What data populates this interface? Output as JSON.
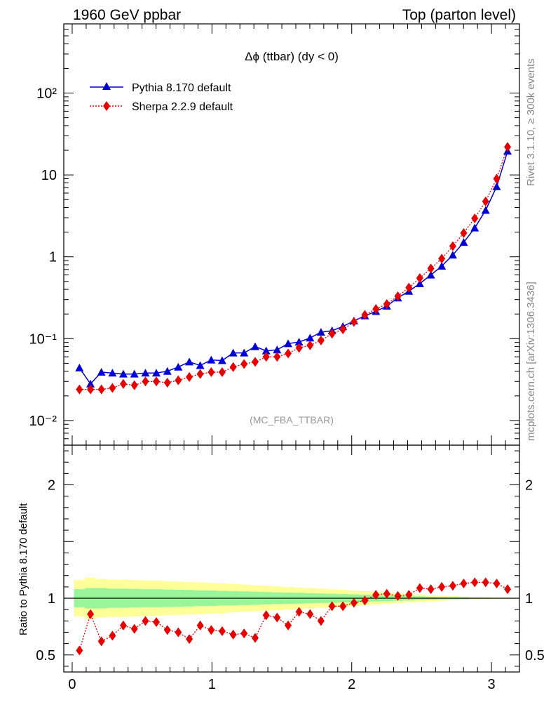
{
  "header": {
    "left_title": "1960 GeV ppbar",
    "right_title": "Top (parton level)"
  },
  "plot_title": "Δϕ (ttbar) (dy < 0)",
  "side_labels": {
    "rivet": "Rivet 3.1.10, ≥ 300k events",
    "mcplots": "mcplots.cern.ch [arXiv:1306.3436]"
  },
  "watermark": "(MC_FBA_TTBAR)",
  "ratio_ylabel": "Ratio to Pythia 8.170 default",
  "colors": {
    "pythia": "#0000d6",
    "sherpa": "#e60000",
    "band_inner": "#99f599",
    "band_outer": "#ffff99"
  },
  "chart_data": [
    {
      "type": "line",
      "panel": "main",
      "yscale": "log",
      "ylim": [
        0.005,
        700
      ],
      "xlim": [
        -0.06,
        3.2
      ],
      "yticks": [
        {
          "v": 0.01,
          "label": "10⁻²"
        },
        {
          "v": 0.1,
          "label": "10⁻¹"
        },
        {
          "v": 1,
          "label": "1"
        },
        {
          "v": 10,
          "label": "10"
        },
        {
          "v": 100,
          "label": "10²"
        }
      ],
      "legend_position": "top-left",
      "x": [
        0.052,
        0.131,
        0.209,
        0.288,
        0.366,
        0.445,
        0.524,
        0.602,
        0.681,
        0.759,
        0.838,
        0.916,
        0.995,
        1.073,
        1.152,
        1.23,
        1.309,
        1.388,
        1.466,
        1.545,
        1.623,
        1.702,
        1.78,
        1.859,
        1.937,
        2.016,
        2.094,
        2.173,
        2.251,
        2.33,
        2.409,
        2.487,
        2.566,
        2.644,
        2.723,
        2.801,
        2.88,
        2.958,
        3.037,
        3.115
      ],
      "series": [
        {
          "name": "Pythia 8.170 default",
          "marker": "triangle",
          "values": [
            0.044,
            0.028,
            0.039,
            0.038,
            0.037,
            0.037,
            0.038,
            0.038,
            0.04,
            0.045,
            0.052,
            0.047,
            0.055,
            0.054,
            0.067,
            0.067,
            0.08,
            0.071,
            0.073,
            0.087,
            0.091,
            0.102,
            0.12,
            0.125,
            0.141,
            0.165,
            0.19,
            0.215,
            0.25,
            0.315,
            0.38,
            0.47,
            0.6,
            0.77,
            1.05,
            1.5,
            2.25,
            3.7,
            7.2,
            19.5
          ]
        },
        {
          "name": "Sherpa 2.2.9 default",
          "marker": "diamond",
          "values": [
            0.024,
            0.024,
            0.024,
            0.025,
            0.028,
            0.027,
            0.03,
            0.03,
            0.029,
            0.031,
            0.034,
            0.037,
            0.039,
            0.039,
            0.045,
            0.049,
            0.052,
            0.06,
            0.06,
            0.066,
            0.077,
            0.083,
            0.095,
            0.115,
            0.13,
            0.16,
            0.195,
            0.23,
            0.265,
            0.33,
            0.42,
            0.55,
            0.72,
            0.95,
            1.35,
            1.95,
            2.95,
            4.75,
            9.0,
            22.0
          ]
        }
      ]
    },
    {
      "type": "line",
      "panel": "ratio",
      "ylim": [
        0.35,
        2.35
      ],
      "xlim": [
        -0.06,
        3.2
      ],
      "ylabel": "Ratio to Pythia 8.170 default",
      "yticks": [
        {
          "v": 0.5,
          "label": "0.5"
        },
        {
          "v": 1,
          "label": "1"
        },
        {
          "v": 2,
          "label": "2"
        }
      ],
      "xticks": [
        {
          "v": 0,
          "label": "0"
        },
        {
          "v": 1,
          "label": "1"
        },
        {
          "v": 2,
          "label": "2"
        },
        {
          "v": 3,
          "label": "3"
        }
      ],
      "reference_line": 1,
      "band_inner_halfwidth": [
        0.08,
        0.09,
        0.09,
        0.085,
        0.085,
        0.082,
        0.08,
        0.08,
        0.077,
        0.075,
        0.073,
        0.07,
        0.068,
        0.065,
        0.063,
        0.06,
        0.058,
        0.055,
        0.052,
        0.05,
        0.048,
        0.045,
        0.042,
        0.04,
        0.037,
        0.034,
        0.031,
        0.028,
        0.025,
        0.022,
        0.019,
        0.016,
        0.013,
        0.011,
        0.009,
        0.007,
        0.005,
        0.004,
        0.003,
        0.002
      ],
      "band_outer_halfwidth": [
        0.16,
        0.18,
        0.17,
        0.165,
        0.165,
        0.16,
        0.157,
        0.155,
        0.15,
        0.147,
        0.143,
        0.14,
        0.135,
        0.13,
        0.125,
        0.12,
        0.115,
        0.11,
        0.105,
        0.1,
        0.095,
        0.09,
        0.085,
        0.08,
        0.075,
        0.068,
        0.062,
        0.056,
        0.05,
        0.044,
        0.038,
        0.032,
        0.027,
        0.022,
        0.018,
        0.014,
        0.01,
        0.008,
        0.006,
        0.004
      ],
      "series": [
        {
          "name": "Sherpa 2.2.9 default",
          "marker": "diamond",
          "values": [
            0.54,
            0.86,
            0.62,
            0.67,
            0.76,
            0.73,
            0.8,
            0.79,
            0.72,
            0.7,
            0.64,
            0.76,
            0.72,
            0.71,
            0.68,
            0.69,
            0.65,
            0.85,
            0.83,
            0.76,
            0.88,
            0.86,
            0.8,
            0.93,
            0.93,
            0.96,
            0.98,
            1.03,
            1.04,
            1.02,
            1.03,
            1.09,
            1.08,
            1.1,
            1.11,
            1.13,
            1.14,
            1.14,
            1.13,
            1.08
          ]
        }
      ]
    }
  ]
}
